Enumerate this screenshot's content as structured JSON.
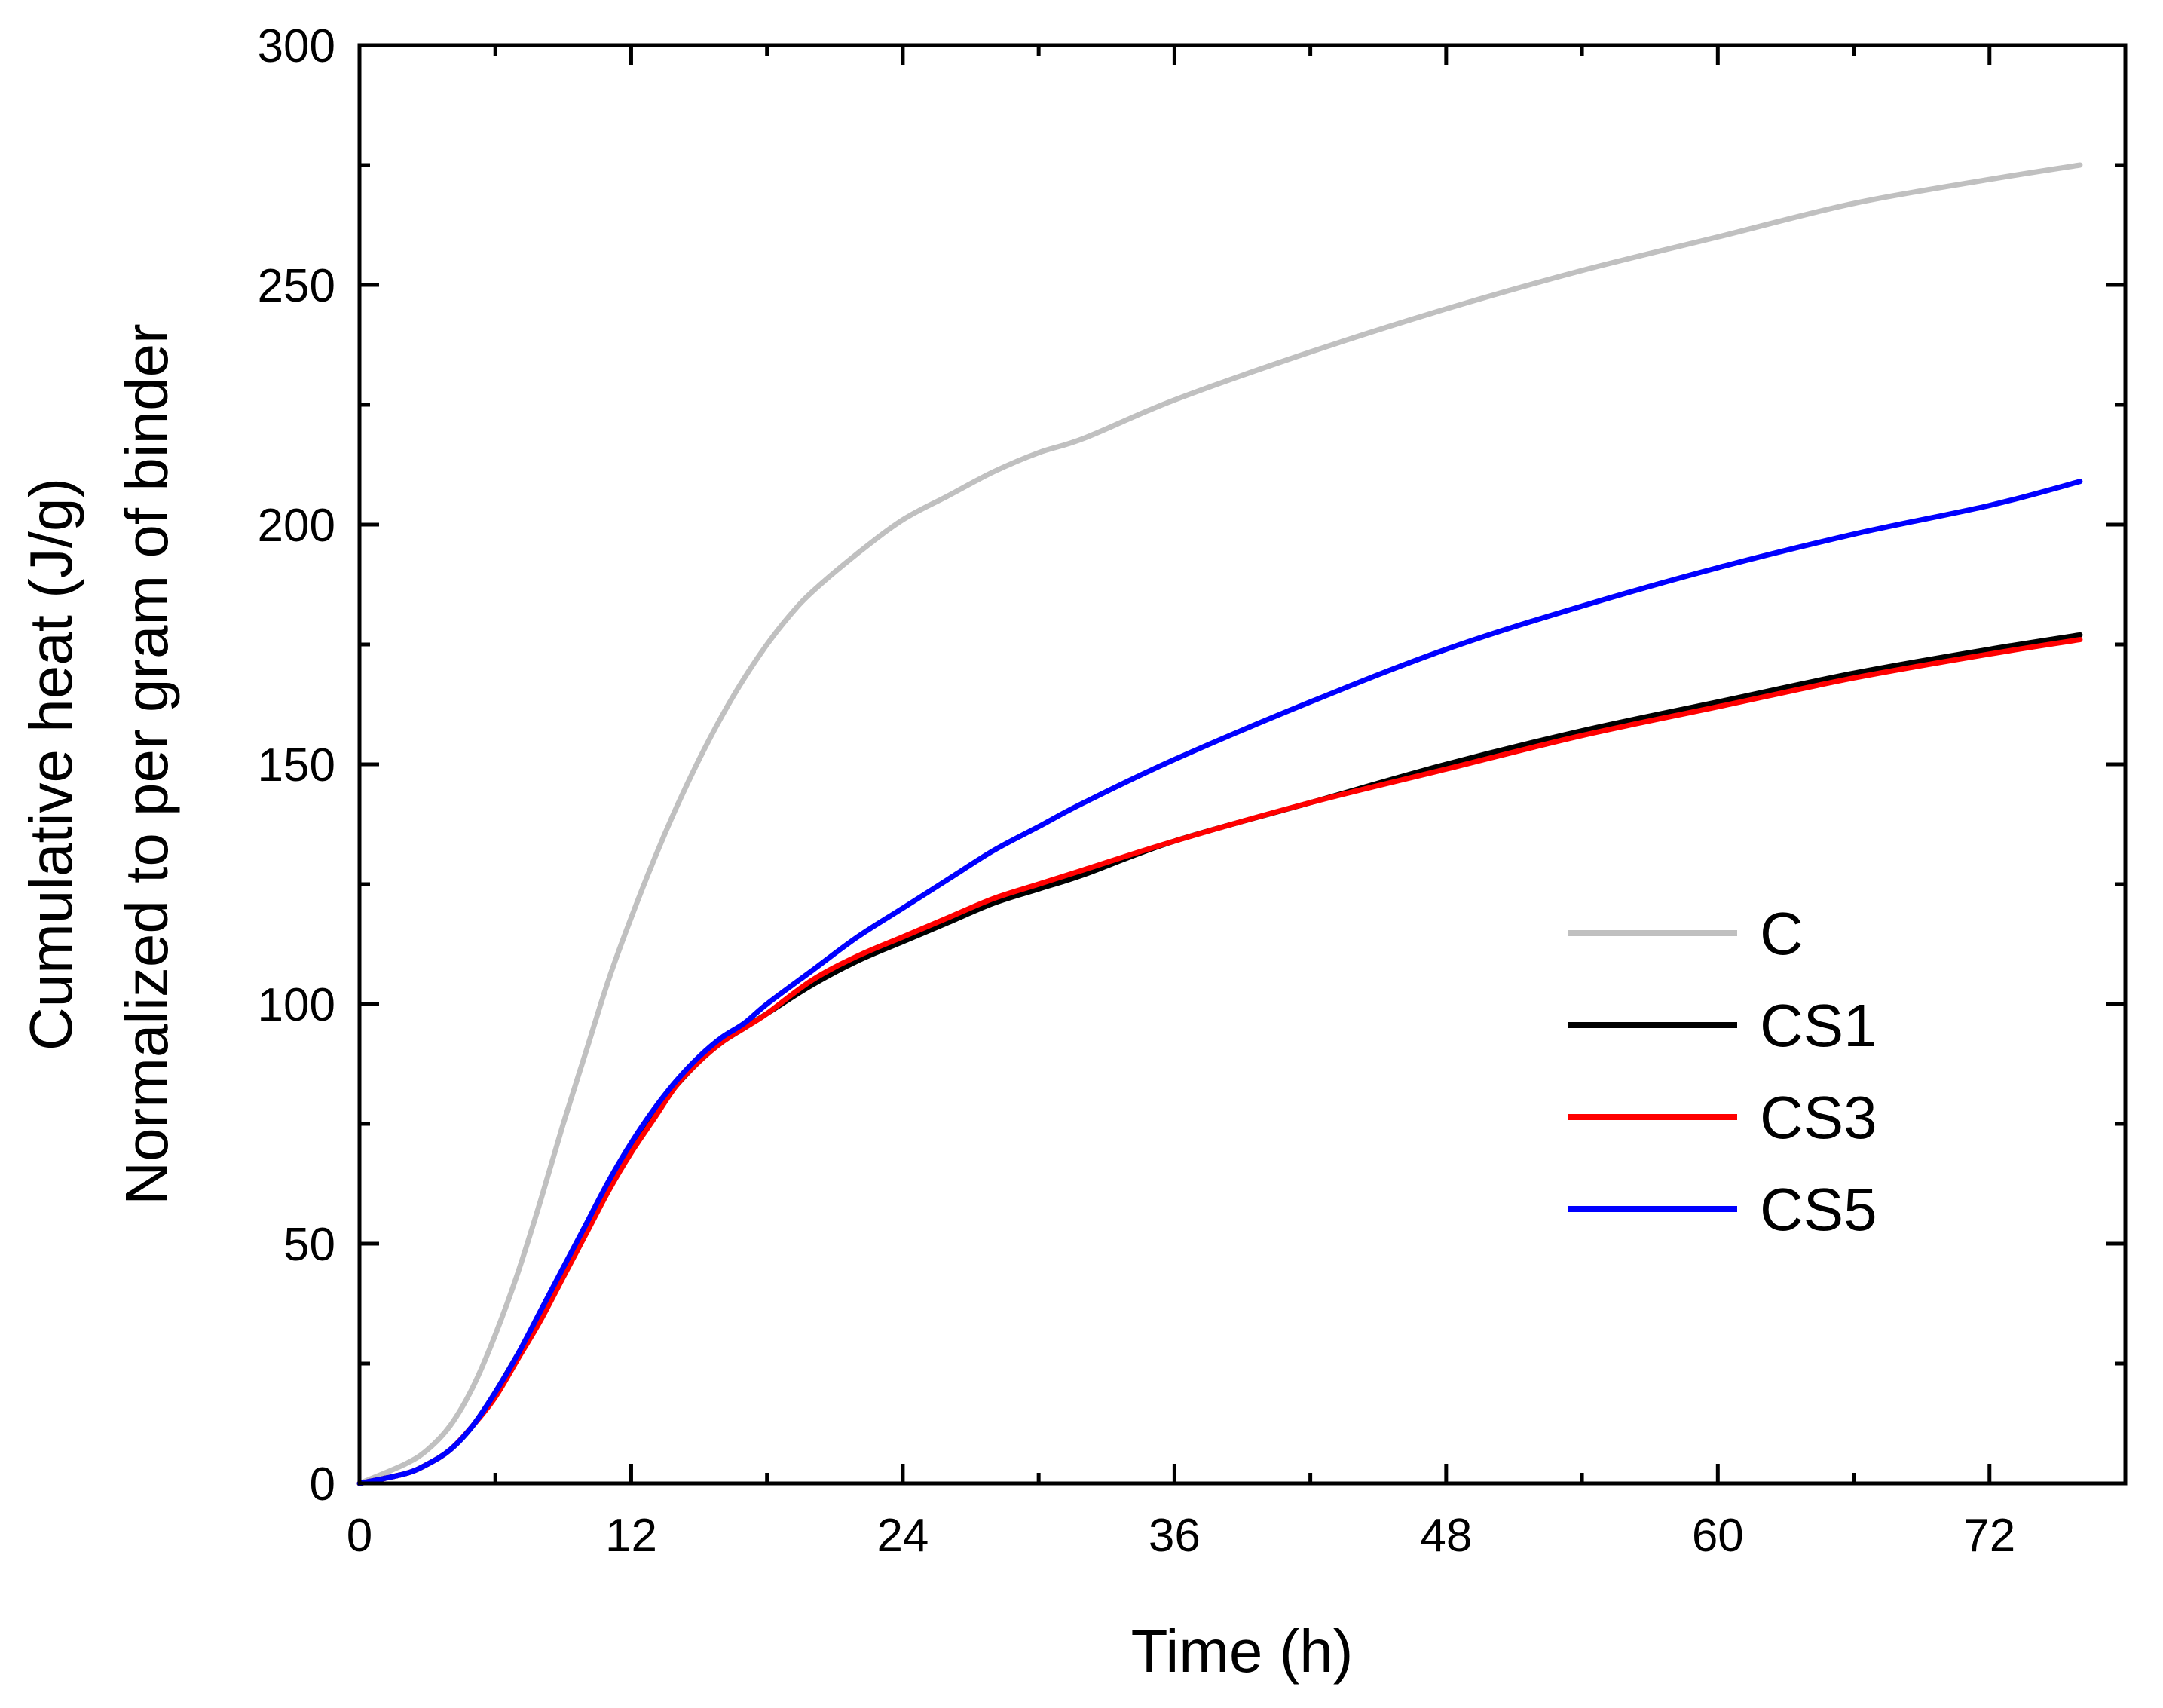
{
  "chart_data": {
    "type": "line",
    "title": "",
    "xlabel": "Time (h)",
    "ylabel_line1": "Cumulative heat (J/g)",
    "ylabel_line2": "Normalized to per gram of binder",
    "xlim": [
      0,
      78
    ],
    "ylim": [
      0,
      300
    ],
    "x_ticks": [
      0,
      12,
      24,
      36,
      48,
      60,
      72
    ],
    "x_minor_ticks": [
      6,
      18,
      30,
      42,
      54,
      66
    ],
    "y_ticks": [
      0,
      50,
      100,
      150,
      200,
      250,
      300
    ],
    "y_minor_ticks": [
      25,
      75,
      125,
      175,
      225,
      275
    ],
    "grid": false,
    "legend_position": "right-middle",
    "series": [
      {
        "name": "C",
        "color": "#c0c0c0",
        "x": [
          0,
          2,
          3,
          4,
          5,
          6,
          7,
          8,
          9,
          10,
          11,
          12,
          13,
          14,
          15,
          16,
          17,
          18,
          19,
          20,
          22,
          24,
          26,
          28,
          30,
          32,
          36,
          42,
          48,
          54,
          60,
          66,
          72,
          76
        ],
        "y": [
          0,
          4,
          7,
          12,
          20,
          31,
          44,
          59,
          75,
          90,
          105,
          118,
          130,
          141,
          151,
          160,
          168,
          175,
          181,
          186,
          194,
          201,
          206,
          211,
          215,
          218,
          226,
          236,
          245,
          253,
          260,
          267,
          272,
          275
        ]
      },
      {
        "name": "CS1",
        "color": "#000000",
        "x": [
          0,
          2,
          3,
          4,
          5,
          6,
          7,
          8,
          9,
          10,
          11,
          12,
          13,
          14,
          15,
          16,
          17,
          18,
          20,
          22,
          24,
          26,
          28,
          30,
          32,
          36,
          42,
          48,
          54,
          60,
          66,
          72,
          76
        ],
        "y": [
          0,
          2,
          4,
          7,
          12,
          19,
          27,
          35,
          44,
          53,
          62,
          70,
          77,
          83,
          88,
          92,
          95,
          98,
          104,
          109,
          113,
          117,
          121,
          124,
          127,
          134,
          142,
          150,
          157,
          163,
          169,
          174,
          177
        ]
      },
      {
        "name": "CS3",
        "color": "#ff0000",
        "x": [
          0,
          2,
          3,
          4,
          5,
          6,
          7,
          8,
          9,
          10,
          11,
          12,
          13,
          14,
          15,
          16,
          17,
          18,
          20,
          22,
          24,
          26,
          28,
          30,
          32,
          36,
          42,
          48,
          54,
          60,
          66,
          72,
          76
        ],
        "y": [
          0,
          2,
          4,
          7,
          12,
          18,
          26,
          34,
          43,
          52,
          61,
          69,
          76,
          83,
          88,
          92,
          95,
          98,
          105,
          110,
          114,
          118,
          122,
          125,
          128,
          134,
          142,
          149,
          156,
          162,
          168,
          173,
          176
        ]
      },
      {
        "name": "CS5",
        "color": "#0000ff",
        "x": [
          0,
          2,
          3,
          4,
          5,
          6,
          7,
          8,
          9,
          10,
          11,
          12,
          13,
          14,
          15,
          16,
          17,
          18,
          20,
          22,
          24,
          26,
          28,
          30,
          32,
          36,
          42,
          48,
          54,
          60,
          66,
          72,
          76
        ],
        "y": [
          0,
          2,
          4,
          7,
          12,
          19,
          27,
          36,
          45,
          54,
          63,
          71,
          78,
          84,
          89,
          93,
          96,
          100,
          107,
          114,
          120,
          126,
          132,
          137,
          142,
          151,
          163,
          174,
          183,
          191,
          198,
          204,
          209
        ]
      }
    ]
  }
}
